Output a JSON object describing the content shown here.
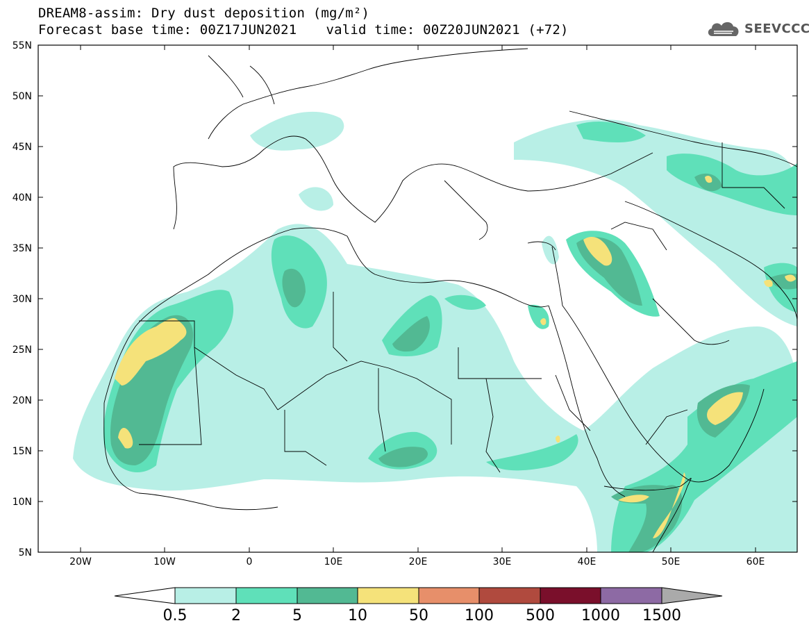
{
  "header": {
    "title": "DREAM8-assim: Dry dust deposition (mg/m²)",
    "base_time": "Forecast base time: 00Z17JUN2021",
    "valid_time": "valid time: 00Z20JUN2021 (+72)"
  },
  "logo": {
    "text": "SEEVCCC",
    "icon": "cloud-icon"
  },
  "axes": {
    "lat_ticks": [
      "55N",
      "50N",
      "45N",
      "40N",
      "35N",
      "30N",
      "25N",
      "20N",
      "15N",
      "10N",
      "5N"
    ],
    "lon_ticks": [
      "20W",
      "10W",
      "0",
      "10E",
      "20E",
      "30E",
      "40E",
      "50E",
      "60E"
    ],
    "lon_range": [
      -25,
      65
    ],
    "lat_range": [
      5,
      55
    ]
  },
  "colorbar": {
    "labels": [
      "0.5",
      "2",
      "5",
      "10",
      "50",
      "100",
      "500",
      "1000",
      "1500"
    ],
    "colors": [
      "#ffffff",
      "#b8efe6",
      "#5fe0b9",
      "#52b993",
      "#f5e27a",
      "#e78f6a",
      "#b04a3e",
      "#7a0f2b",
      "#8d6aa4",
      "#aaaaaa"
    ]
  }
}
